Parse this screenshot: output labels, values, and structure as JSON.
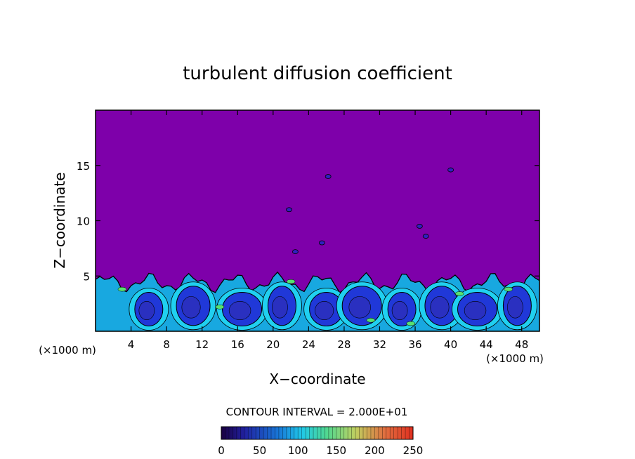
{
  "chart_data": {
    "type": "heatmap",
    "title": "turbulent diffusion coefficient",
    "xlabel": "X−coordinate",
    "ylabel": "Z−coordinate",
    "x_unit_left": "(×1000 m)",
    "x_unit_right": "(×1000 m)",
    "xlim": [
      0,
      50
    ],
    "ylim": [
      0,
      20
    ],
    "x_ticks": [
      4,
      8,
      12,
      16,
      20,
      24,
      28,
      32,
      36,
      40,
      44,
      48
    ],
    "y_ticks": [
      5,
      10,
      15
    ],
    "contour_interval_label": "CONTOUR INTERVAL = 2.000E+01",
    "colorbar": {
      "min": 0,
      "max": 250,
      "ticks": [
        0,
        50,
        100,
        150,
        200,
        250
      ],
      "colors": [
        "#7800b0",
        "#2020d0",
        "#00c8ff",
        "#40e880",
        "#ffe040",
        "#ff3020"
      ]
    },
    "background_color": "#7e00aa",
    "boundary_layer_top_approx": 5,
    "eddy_centers_x": [
      6,
      11,
      16.5,
      21,
      26,
      30,
      34.5,
      39,
      43,
      47.5
    ]
  }
}
